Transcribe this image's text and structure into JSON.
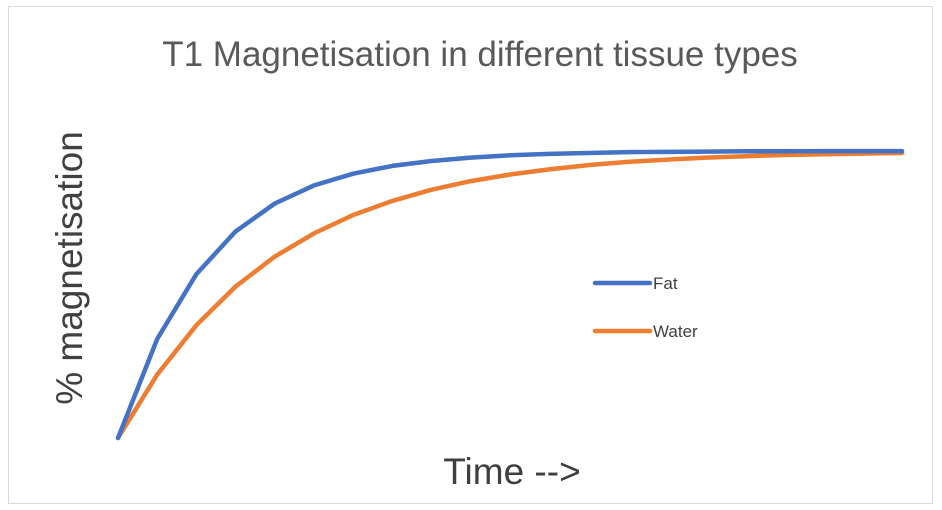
{
  "chart_data": {
    "type": "line",
    "title": "T1 Magnetisation in different tissue types",
    "xlabel": "Time -->",
    "ylabel": "% magnetisation",
    "x": [
      0,
      1,
      2,
      3,
      4,
      5,
      6,
      7,
      8,
      9,
      10,
      11,
      12,
      13,
      14,
      15,
      16,
      17,
      18,
      19,
      20
    ],
    "ylim": [
      0,
      100
    ],
    "grid": false,
    "legend_position": "right",
    "series": [
      {
        "name": "Fat",
        "color": "#4472c4",
        "values": [
          0,
          34.5,
          57.1,
          72.0,
          81.7,
          88.0,
          92.1,
          94.8,
          96.5,
          97.7,
          98.5,
          99.0,
          99.3,
          99.6,
          99.7,
          99.8,
          99.9,
          99.9,
          99.95,
          99.97,
          99.98
        ]
      },
      {
        "name": "Water",
        "color": "#ed7d31",
        "values": [
          0,
          22.1,
          39.3,
          52.8,
          63.2,
          71.3,
          77.7,
          82.6,
          86.5,
          89.5,
          91.8,
          93.6,
          95.1,
          96.2,
          97.0,
          97.7,
          98.2,
          98.6,
          98.9,
          99.1,
          99.3
        ]
      }
    ]
  }
}
